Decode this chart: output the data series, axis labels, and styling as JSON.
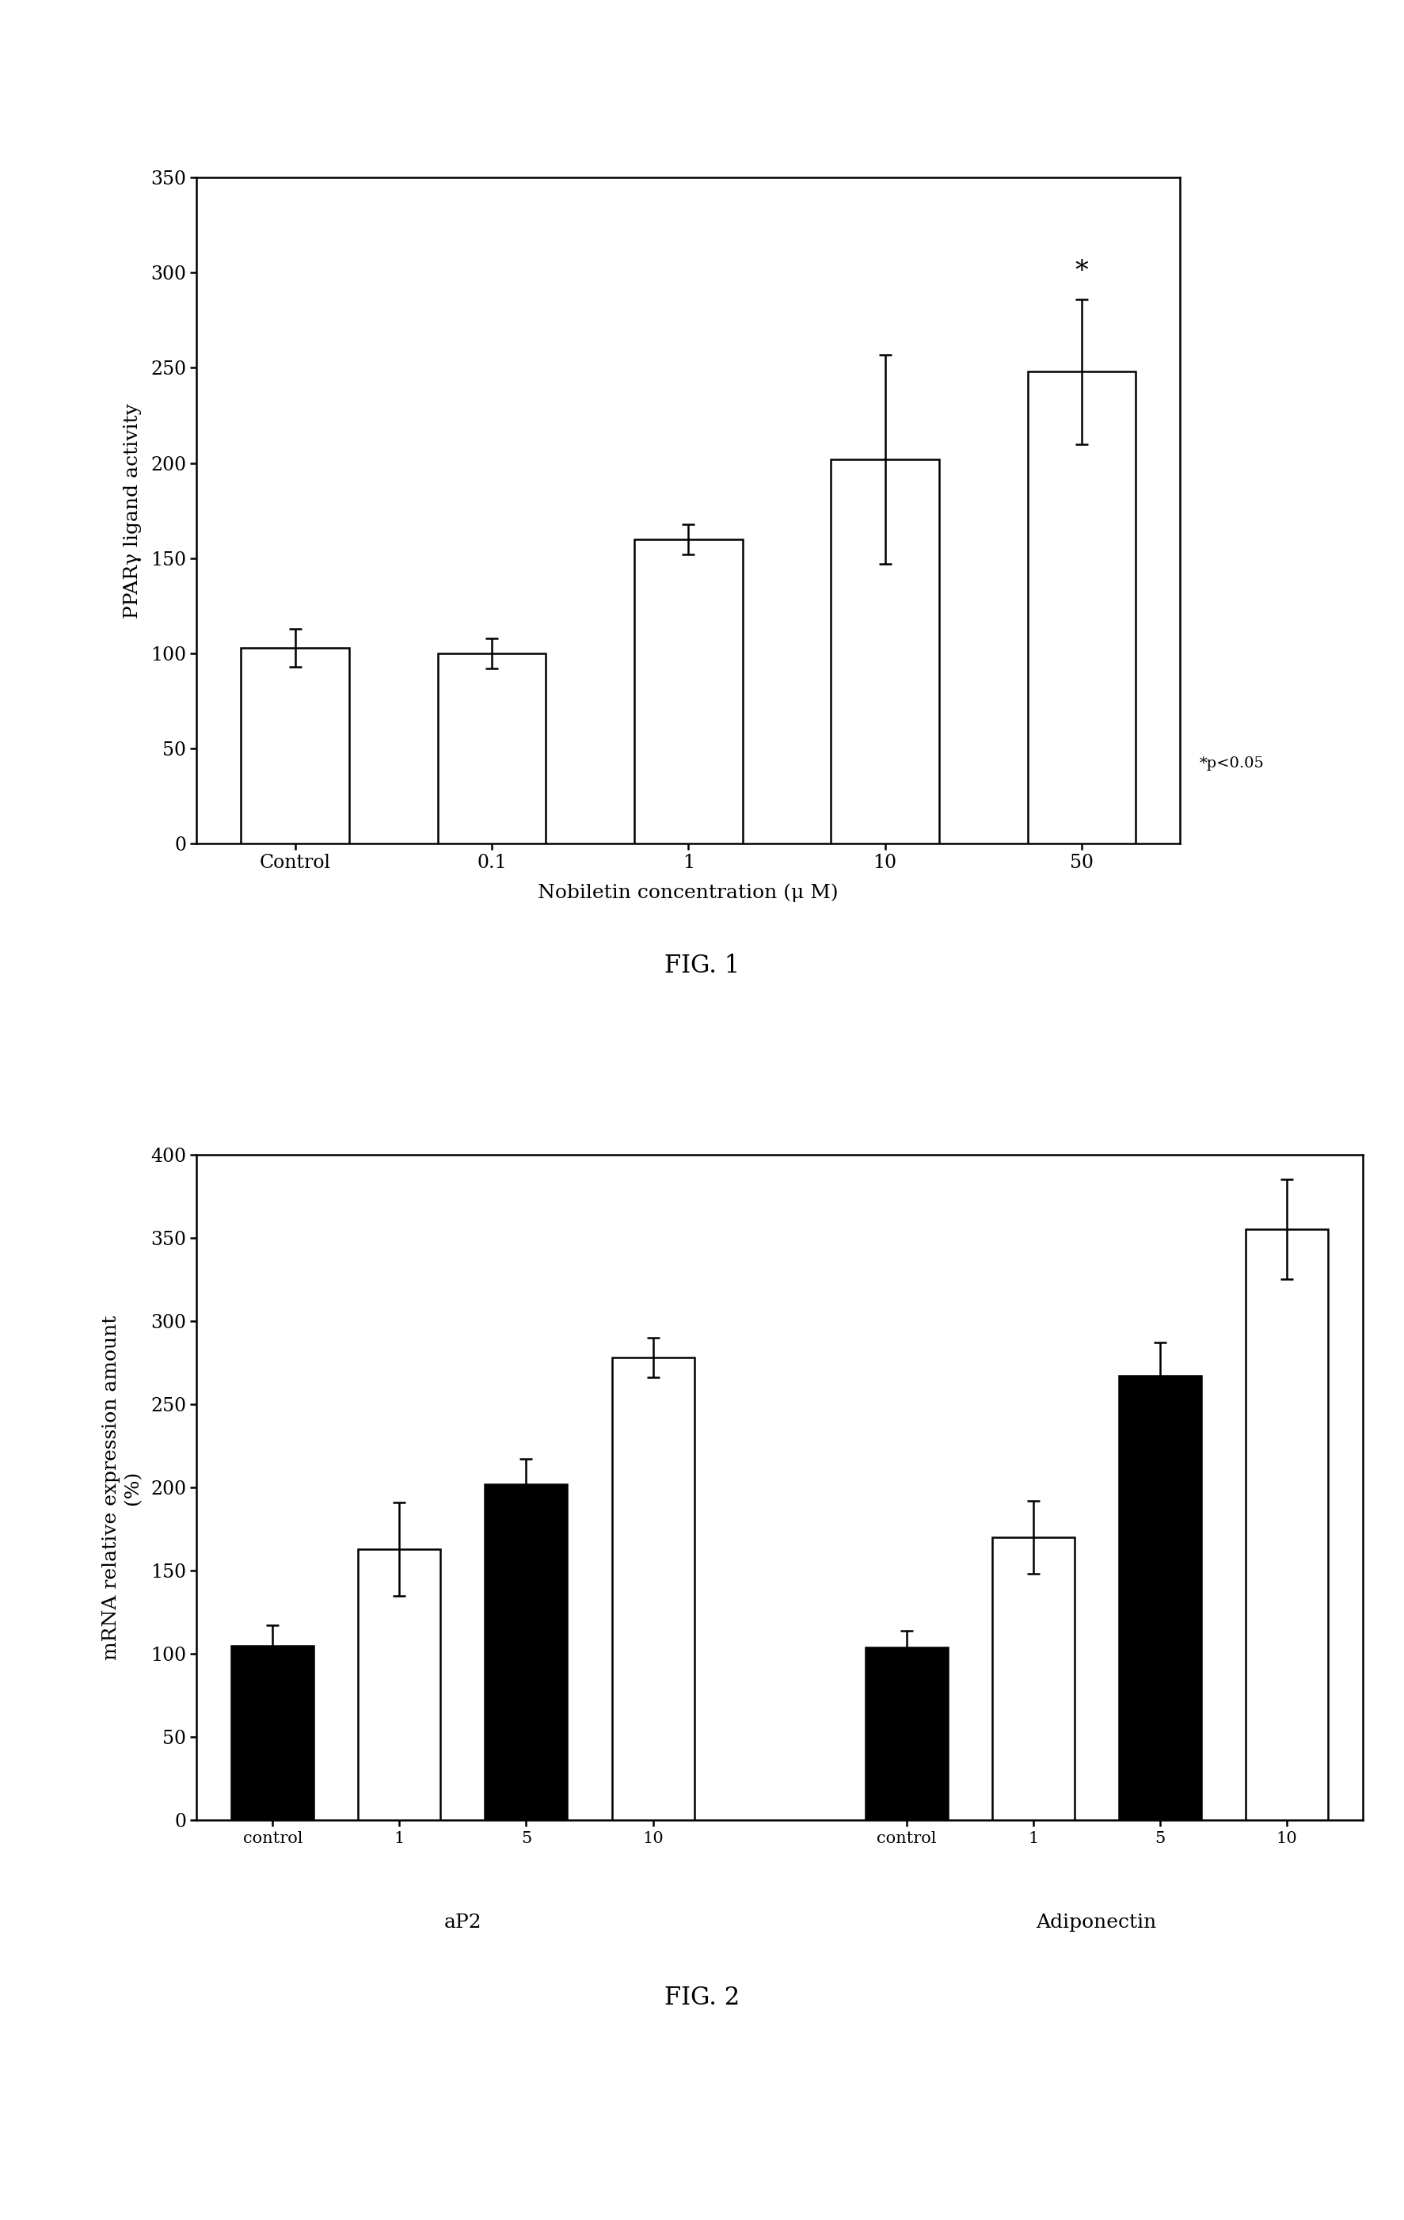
{
  "fig1": {
    "categories": [
      "Control",
      "0.1",
      "1",
      "10",
      "50"
    ],
    "values": [
      103,
      100,
      160,
      202,
      248
    ],
    "errors": [
      10,
      8,
      8,
      55,
      38
    ],
    "ylabel": "PPARγ ligand activity",
    "xlabel": "Nobiletin concentration (μ M)",
    "ylim": [
      0,
      350
    ],
    "yticks": [
      0,
      50,
      100,
      150,
      200,
      250,
      300,
      350
    ],
    "bar_color": "#ffffff",
    "bar_edgecolor": "#000000",
    "sig_label": "*p<0.05",
    "figure_label": "FIG. 1"
  },
  "fig2": {
    "ap2_values": [
      105,
      163,
      202,
      278
    ],
    "ap2_errors": [
      12,
      28,
      15,
      12
    ],
    "ap2_colors": [
      "black",
      "white",
      "black",
      "white"
    ],
    "adip_values": [
      104,
      170,
      267,
      355
    ],
    "adip_errors": [
      10,
      22,
      20,
      30
    ],
    "adip_colors": [
      "black",
      "white",
      "black",
      "white"
    ],
    "ylabel": "mRNA relative expression amount\n(%)",
    "ylim": [
      0,
      400
    ],
    "yticks": [
      0,
      50,
      100,
      150,
      200,
      250,
      300,
      350,
      400
    ],
    "group1_label": "aP2",
    "group2_label": "Adiponectin",
    "xtick_labels": [
      "control",
      "1",
      "5",
      "10",
      "control",
      "1",
      "5",
      "10"
    ],
    "figure_label": "FIG. 2"
  },
  "background_color": "#ffffff"
}
